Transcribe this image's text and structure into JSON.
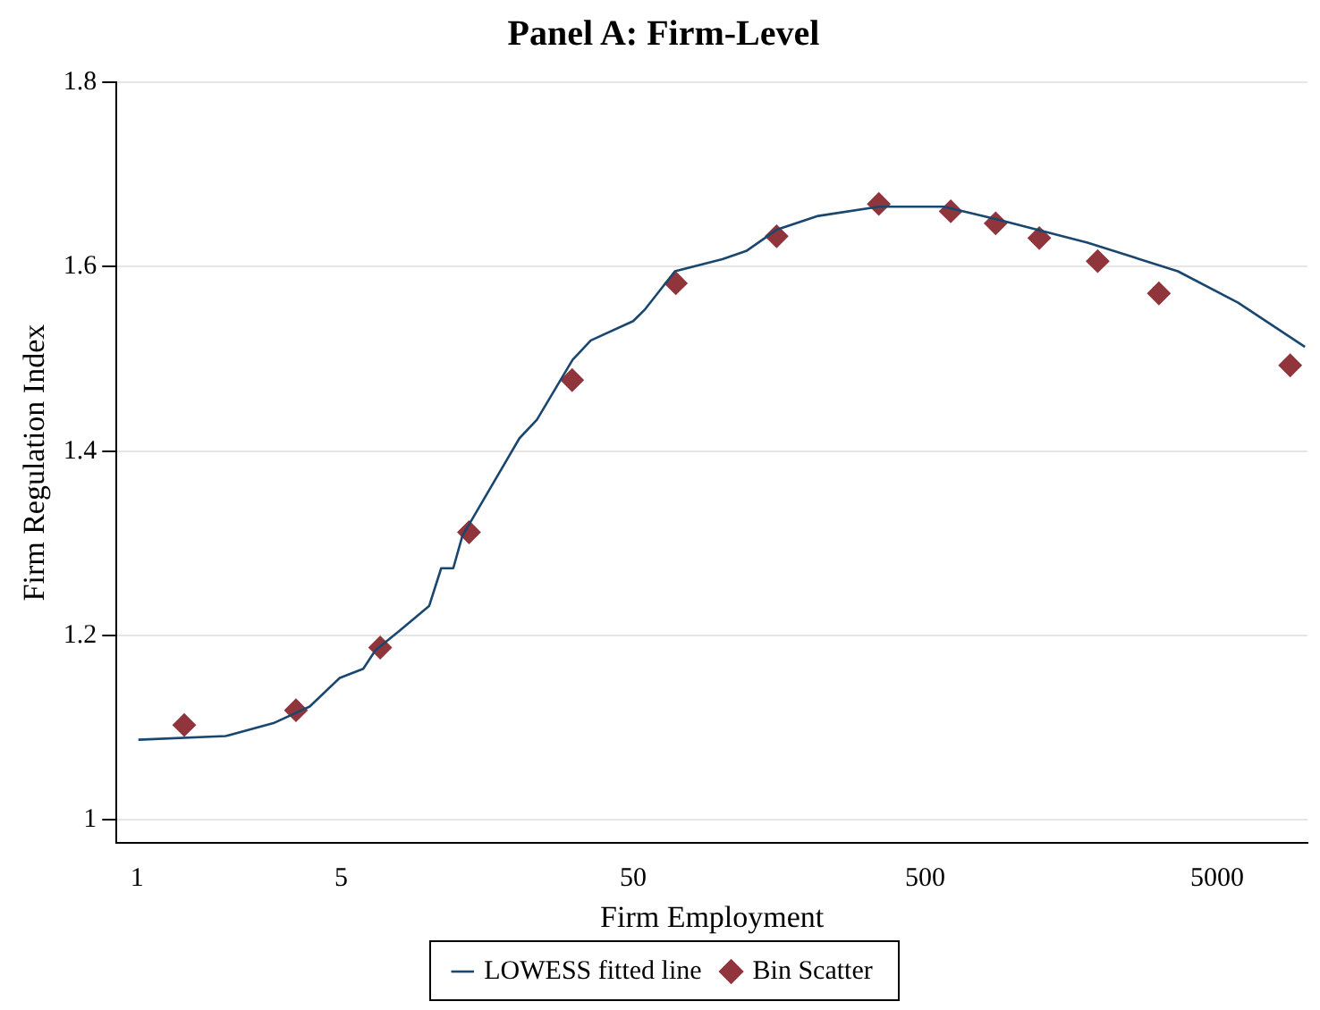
{
  "chart_data": {
    "type": "scatter",
    "title": "Panel A: Firm-Level",
    "xlabel": "Firm Employment",
    "ylabel": "Firm Regulation Index",
    "log": "x",
    "xlim": [
      0.85,
      10200
    ],
    "xticks": [
      1,
      5,
      50,
      500,
      5000
    ],
    "ylim": [
      0.975,
      1.8
    ],
    "yticks": [
      1,
      1.2,
      1.4,
      1.6,
      1.8
    ],
    "grid": "y",
    "legend": "bottom",
    "series": [
      {
        "name": "LOWESS fitted line",
        "type": "line",
        "marker": "none",
        "color": "#1a476f",
        "x": [
          1.01,
          2.01,
          2.93,
          3.9,
          4.94,
          5.95,
          6.55,
          7.9,
          10,
          11,
          12.1,
          13,
          20.4,
          23.4,
          31,
          35.8,
          50,
          55,
          69.5,
          101,
          122,
          155,
          215,
          347,
          580,
          890,
          1800,
          3670,
          5900,
          10000
        ],
        "values": [
          1.087,
          1.091,
          1.105,
          1.123,
          1.154,
          1.164,
          1.184,
          1.205,
          1.232,
          1.273,
          1.273,
          1.308,
          1.414,
          1.434,
          1.499,
          1.52,
          1.541,
          1.554,
          1.595,
          1.608,
          1.617,
          1.64,
          1.655,
          1.665,
          1.665,
          1.651,
          1.626,
          1.595,
          1.561,
          1.513
        ]
      },
      {
        "name": "Bin Scatter",
        "marker": "diamond",
        "color": "#90353b",
        "x": [
          1.45,
          3.5,
          6.8,
          13.7,
          30.9,
          70,
          155,
          347,
          612,
          872,
          1230,
          1950,
          3160,
          8900
        ],
        "values": [
          1.103,
          1.119,
          1.187,
          1.312,
          1.477,
          1.582,
          1.633,
          1.668,
          1.66,
          1.647,
          1.631,
          1.606,
          1.571,
          1.493
        ]
      }
    ]
  }
}
